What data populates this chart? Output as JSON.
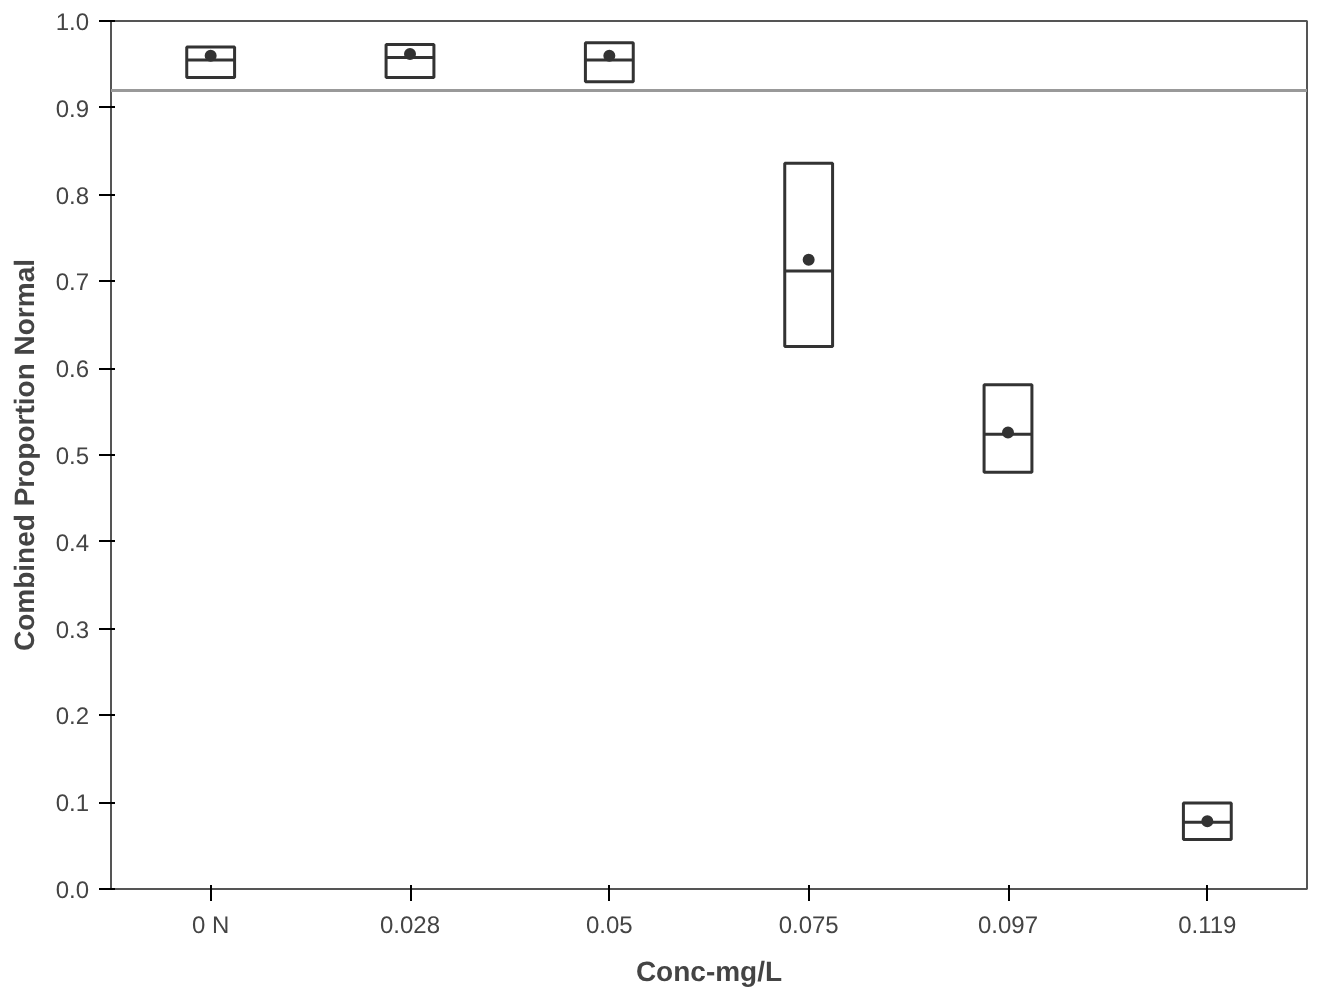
{
  "chart_data": {
    "type": "box",
    "xlabel": "Conc-mg/L",
    "ylabel": "Combined Proportion Normal",
    "categories": [
      "0 N",
      "0.028",
      "0.05",
      "0.075",
      "0.097",
      "0.119"
    ],
    "boxes": [
      {
        "low": 0.935,
        "q1": 0.935,
        "median": 0.955,
        "q3": 0.97,
        "high": 0.97,
        "mean": 0.96
      },
      {
        "low": 0.935,
        "q1": 0.935,
        "median": 0.958,
        "q3": 0.973,
        "high": 0.973,
        "mean": 0.962
      },
      {
        "low": 0.93,
        "q1": 0.93,
        "median": 0.955,
        "q3": 0.975,
        "high": 0.975,
        "mean": 0.96
      },
      {
        "low": 0.625,
        "q1": 0.625,
        "median": 0.712,
        "q3": 0.836,
        "high": 0.836,
        "mean": 0.725
      },
      {
        "low": 0.48,
        "q1": 0.48,
        "median": 0.524,
        "q3": 0.581,
        "high": 0.581,
        "mean": 0.526
      },
      {
        "low": 0.057,
        "q1": 0.057,
        "median": 0.077,
        "q3": 0.099,
        "high": 0.099,
        "mean": 0.078
      }
    ],
    "color": "#333333",
    "ylim": [
      0,
      1
    ],
    "yticks": [
      {
        "value": 0,
        "label": "0.0"
      },
      0.1,
      0.2,
      0.3,
      0.4,
      0.5,
      0.6,
      0.7,
      0.8,
      0.9,
      {
        "value": 1,
        "label": "1.0"
      }
    ],
    "ref_lines": [
      {
        "axis": "y",
        "value": 0.92,
        "color": "#999999"
      }
    ],
    "grid": false
  }
}
